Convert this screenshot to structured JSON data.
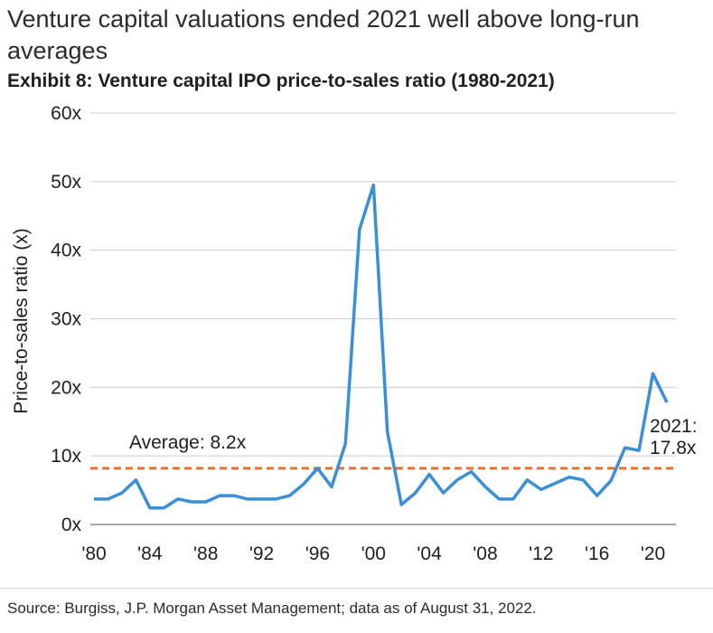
{
  "headline": "Venture capital valuations ended 2021 well above long-run averages",
  "subtitle": "Exhibit 8: Venture capital IPO price-to-sales ratio (1980-2021)",
  "source": "Source: Burgiss, J.P. Morgan Asset Management; data as of August 31, 2022.",
  "colors": {
    "line": "#3a8fd6",
    "average": "#e8722c",
    "grid": "#cccccc"
  },
  "chart_data": {
    "type": "line",
    "ylabel": "Price-to-sales ratio (x)",
    "ylim": [
      0,
      60
    ],
    "yticks": [
      0,
      10,
      20,
      30,
      40,
      50,
      60
    ],
    "ytick_labels": [
      "0x",
      "10x",
      "20x",
      "30x",
      "40x",
      "50x",
      "60x"
    ],
    "xticks": [
      1980,
      1984,
      1988,
      1992,
      1996,
      2000,
      2004,
      2008,
      2012,
      2016,
      2020
    ],
    "xtick_labels": [
      "'80",
      "'84",
      "'88",
      "'92",
      "'96",
      "'00",
      "'04",
      "'08",
      "'12",
      "'16",
      "'20"
    ],
    "grid": true,
    "series": [
      {
        "x": [
          1980,
          1981,
          1982,
          1983,
          1984,
          1985,
          1986,
          1987,
          1988,
          1989,
          1990,
          1991,
          1992,
          1993,
          1994,
          1995,
          1996,
          1997,
          1998,
          1999,
          2000,
          2001,
          2002,
          2003,
          2004,
          2005,
          2006,
          2007,
          2008,
          2009,
          2010,
          2011,
          2012,
          2013,
          2014,
          2015,
          2016,
          2017,
          2018,
          2019,
          2020,
          2021
        ],
        "values": [
          3.7,
          3.7,
          4.6,
          6.5,
          2.4,
          2.4,
          3.7,
          3.3,
          3.3,
          4.2,
          4.2,
          3.7,
          3.7,
          3.7,
          4.2,
          5.9,
          8.2,
          5.5,
          11.8,
          43.0,
          49.5,
          13.5,
          2.9,
          4.6,
          7.3,
          4.6,
          6.5,
          7.7,
          5.5,
          3.7,
          3.7,
          6.5,
          5.1,
          6.0,
          6.9,
          6.5,
          4.2,
          6.4,
          11.2,
          10.8,
          22.0,
          17.8
        ]
      }
    ],
    "average": {
      "value": 8.2,
      "label": "Average: 8.2x"
    },
    "end_label": [
      "2021:",
      "17.8x"
    ]
  }
}
